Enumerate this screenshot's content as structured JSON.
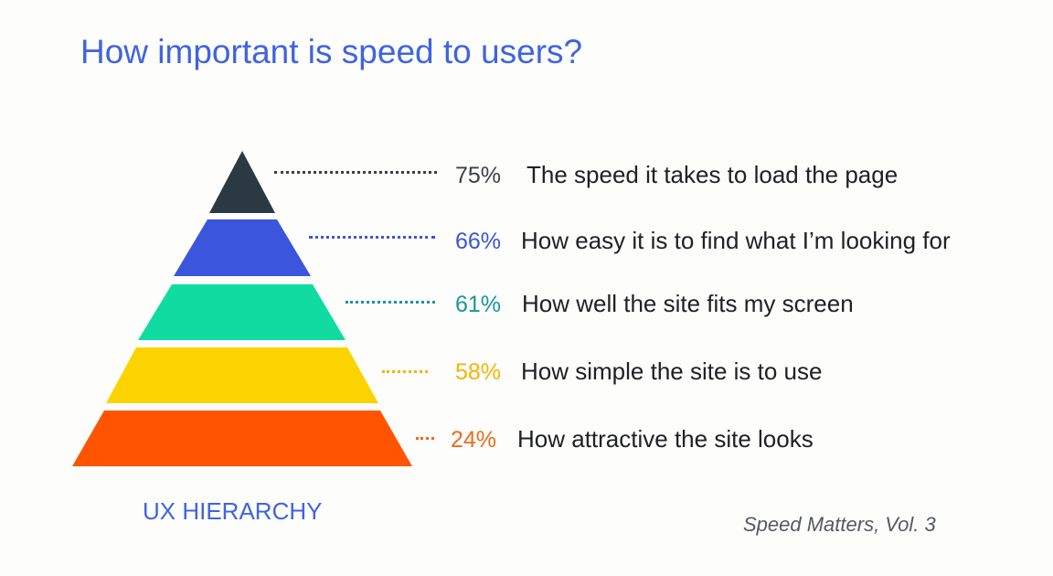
{
  "slide": {
    "title": "How important is speed to users?",
    "pyramid_label": "UX HIERARCHY",
    "source": "Speed Matters, Vol. 3"
  },
  "tiers": [
    {
      "percent": "75%",
      "text": "The speed it takes to load the page",
      "color": "#2b3a42"
    },
    {
      "percent": "66%",
      "text": "How easy it is to find what I’m looking for",
      "color": "#3b55dc"
    },
    {
      "percent": "61%",
      "text": "How well the site fits my screen",
      "color": "#12dba2"
    },
    {
      "percent": "58%",
      "text": "How simple the site is to use",
      "color": "#fbd400"
    },
    {
      "percent": "24%",
      "text": "How attractive the site looks",
      "color": "#ff5500"
    }
  ],
  "percent_colors": [
    "#3c4043",
    "#3b55dc",
    "#15979f",
    "#f6b400",
    "#ef6a1c"
  ]
}
